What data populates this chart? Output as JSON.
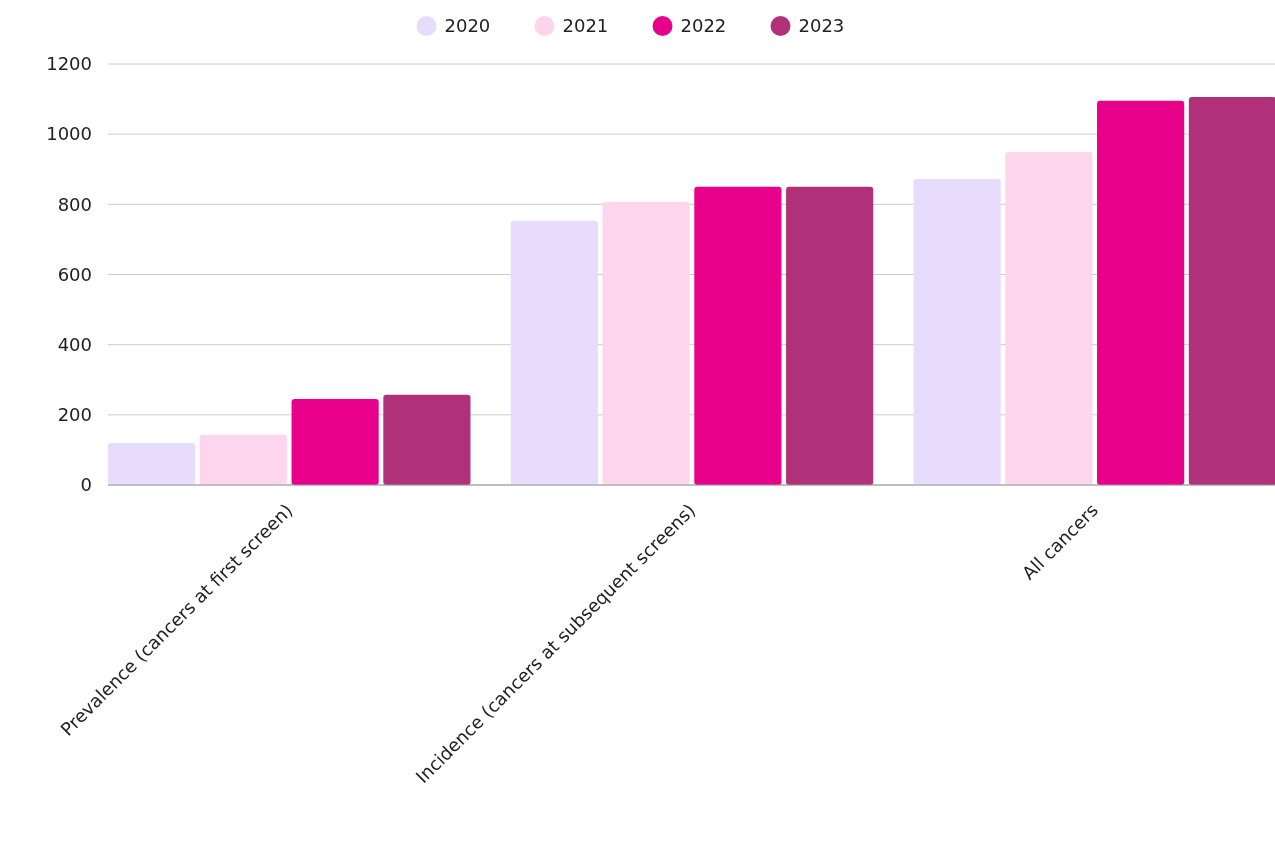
{
  "chart_data": {
    "type": "bar",
    "categories": [
      "Prevalence (cancers at first screen)",
      "Incidence (cancers at subsequent screens)",
      "All cancers"
    ],
    "series": [
      {
        "name": "2020",
        "color": "#e8dcfd",
        "values": [
          120,
          753,
          872
        ]
      },
      {
        "name": "2021",
        "color": "#fdd6ee",
        "values": [
          143,
          807,
          949
        ]
      },
      {
        "name": "2022",
        "color": "#e8008a",
        "values": [
          245,
          850,
          1095
        ]
      },
      {
        "name": "2023",
        "color": "#b0317a",
        "values": [
          257,
          850,
          1106
        ]
      }
    ],
    "ylim": [
      0,
      1200
    ],
    "yticks": [
      0,
      200,
      400,
      600,
      800,
      1000,
      1200
    ],
    "grid": "y",
    "legend": "top"
  }
}
